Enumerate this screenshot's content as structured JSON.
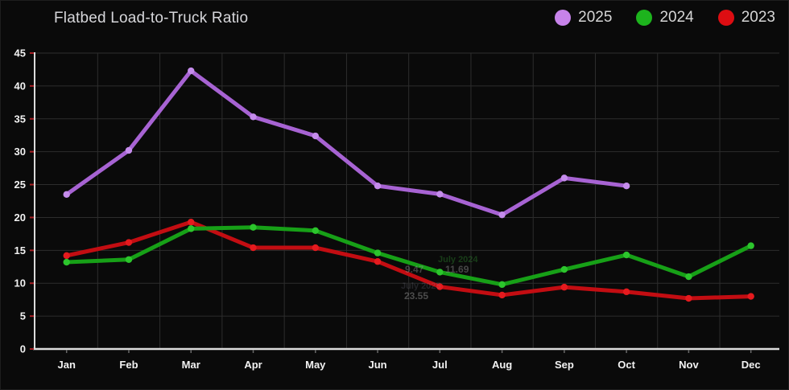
{
  "header": {
    "title": "Flatbed Load-to-Truck Ratio"
  },
  "legend": [
    {
      "label": "2025",
      "color": "#c783ea"
    },
    {
      "label": "2024",
      "color": "#1db41d"
    },
    {
      "label": "2023",
      "color": "#dd0d12"
    }
  ],
  "chart_data": {
    "type": "line",
    "title": "Flatbed Load-to-Truck Ratio",
    "categories": [
      "Jan",
      "Feb",
      "Mar",
      "Apr",
      "May",
      "Jun",
      "Jul",
      "Aug",
      "Sep",
      "Oct",
      "Nov",
      "Dec"
    ],
    "series": [
      {
        "name": "2023",
        "line_color": "#c30d12",
        "marker_color": "#e51a1e",
        "values": [
          14.2,
          16.2,
          19.3,
          15.4,
          15.4,
          13.3,
          9.47,
          8.2,
          9.4,
          8.7,
          7.7,
          8.0
        ]
      },
      {
        "name": "2024",
        "line_color": "#17a017",
        "marker_color": "#2cc52c",
        "values": [
          13.2,
          13.6,
          18.3,
          18.5,
          18.0,
          14.6,
          11.69,
          9.8,
          12.1,
          14.3,
          11.0,
          15.7
        ]
      },
      {
        "name": "2025",
        "line_color": "#a763d3",
        "marker_color": "#c58cec",
        "values": [
          23.5,
          30.2,
          42.3,
          35.3,
          32.4,
          24.8,
          23.55,
          20.4,
          26.0,
          24.8,
          null,
          null
        ]
      }
    ],
    "ylabel": "",
    "xlabel": "",
    "ylim": [
      0,
      45
    ],
    "ytick_step": 5,
    "grid": "on",
    "legend_position": "top-right",
    "colors": {
      "background": "#0a0a0a",
      "grid_color": "#2d2d2d",
      "axis_color": "#dcdcdc",
      "ytick_mark_color": "#a61f24",
      "xtick_mark_color": "#6a6a6a",
      "tick_label_color": "#f2f2f2"
    },
    "ghost_tooltip": [
      {
        "text": "July 2024",
        "x": 543,
        "y": 316,
        "color": "#2f8a2f",
        "opacity": 0.4,
        "size": 11,
        "bold": true
      },
      {
        "text": "9.47",
        "x": 502,
        "y": 327,
        "color": "#9a9a9a",
        "opacity": 0.38,
        "size": 12,
        "bold": true
      },
      {
        "text": "11.69",
        "x": 552,
        "y": 327,
        "color": "#9a9a9a",
        "opacity": 0.42,
        "size": 12,
        "bold": true
      },
      {
        "text": "July 2025",
        "x": 497,
        "y": 349,
        "color": "#8a8aa0",
        "opacity": 0.2,
        "size": 11,
        "bold": true
      },
      {
        "text": "23.55",
        "x": 501,
        "y": 360,
        "color": "#9a9a9a",
        "opacity": 0.45,
        "size": 12,
        "bold": true
      }
    ]
  }
}
